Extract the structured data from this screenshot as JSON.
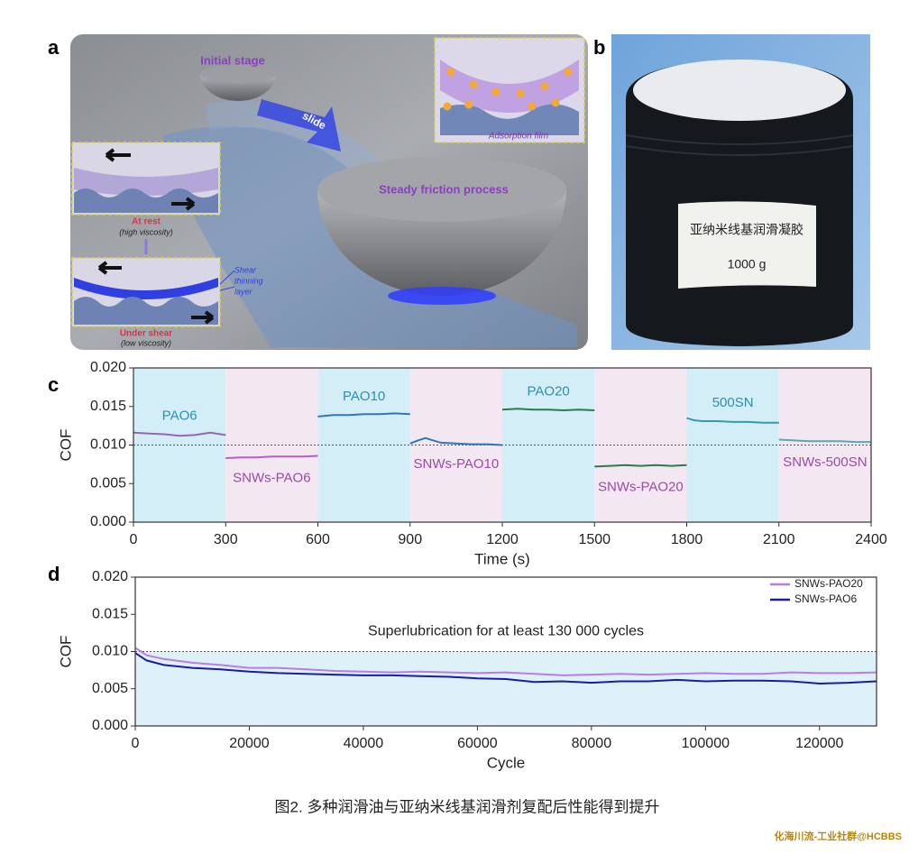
{
  "panel_a": {
    "label": "a",
    "initial": "Initial stage",
    "slide": "slide",
    "steady": "Steady friction process",
    "adsorption": "Adsorption film",
    "at_rest": "At rest",
    "high_visc": "(high viscosity)",
    "under_shear": "Under shear",
    "low_visc": "(low viscosity)",
    "shear_layer": [
      "Shear",
      "thinning",
      "layer"
    ]
  },
  "panel_b": {
    "label": "b",
    "jar_label": "亚纳米线基润滑凝胶",
    "jar_mass": "1000 g"
  },
  "chart_data": [
    {
      "type": "line",
      "panel": "c",
      "xlabel": "Time (s)",
      "ylabel": "COF",
      "xlim": [
        0,
        2400
      ],
      "xticks": [
        0,
        300,
        600,
        900,
        1200,
        1500,
        1800,
        2100,
        2400
      ],
      "ylim": [
        0,
        0.02
      ],
      "yticks": [
        {
          "value": 0,
          "label": "0.000"
        },
        {
          "value": 0.005,
          "label": "0.005"
        },
        {
          "value": 0.01,
          "label": "0.010"
        },
        {
          "value": 0.015,
          "label": "0.015"
        },
        {
          "value": 0.02,
          "label": "0.020"
        }
      ],
      "reference_line": 0.01,
      "series": [
        {
          "name": "PAO6",
          "color": "#9b62b8",
          "label_color": "#2b8fb0",
          "band_color": "#d4eef7",
          "x": [
            0,
            50,
            100,
            150,
            200,
            250,
            300
          ],
          "values": [
            0.0116,
            0.0115,
            0.0114,
            0.0112,
            0.0113,
            0.0116,
            0.0113
          ]
        },
        {
          "name": "SNWs-PAO6",
          "color": "#b45fc8",
          "label_color": "#9a4aa8",
          "band_color": "#f3e8f2",
          "x": [
            300,
            350,
            400,
            450,
            500,
            550,
            600
          ],
          "values": [
            0.0083,
            0.0084,
            0.0084,
            0.0085,
            0.0085,
            0.0085,
            0.0086
          ]
        },
        {
          "name": "PAO10",
          "color": "#2f78b8",
          "label_color": "#2b8fb0",
          "band_color": "#d4eef7",
          "x": [
            600,
            650,
            700,
            750,
            800,
            850,
            900
          ],
          "values": [
            0.0137,
            0.0139,
            0.0139,
            0.014,
            0.014,
            0.0141,
            0.014
          ]
        },
        {
          "name": "SNWs-PAO10",
          "color": "#2f78b8",
          "label_color": "#9a4aa8",
          "band_color": "#f3e8f2",
          "x": [
            900,
            925,
            950,
            1000,
            1050,
            1100,
            1150,
            1200
          ],
          "values": [
            0.0102,
            0.0106,
            0.0109,
            0.0103,
            0.0102,
            0.0101,
            0.0101,
            0.01
          ]
        },
        {
          "name": "PAO20",
          "color": "#2e7a4a",
          "label_color": "#2b8fb0",
          "band_color": "#d4eef7",
          "x": [
            1200,
            1250,
            1300,
            1350,
            1400,
            1450,
            1500
          ],
          "values": [
            0.0146,
            0.0147,
            0.0146,
            0.0146,
            0.0145,
            0.0146,
            0.0145
          ]
        },
        {
          "name": "SNWs-PAO20",
          "color": "#2e7a4a",
          "label_color": "#9a4aa8",
          "band_color": "#f3e8f2",
          "x": [
            1500,
            1550,
            1600,
            1650,
            1700,
            1750,
            1800
          ],
          "values": [
            0.0072,
            0.0073,
            0.0074,
            0.0073,
            0.0074,
            0.0073,
            0.0074
          ]
        },
        {
          "name": "500SN",
          "color": "#3a9aa8",
          "label_color": "#2b8fb0",
          "band_color": "#d4eef7",
          "x": [
            1800,
            1825,
            1850,
            1900,
            1950,
            2000,
            2050,
            2100
          ],
          "values": [
            0.0135,
            0.0132,
            0.0131,
            0.0131,
            0.013,
            0.013,
            0.0129,
            0.0129
          ]
        },
        {
          "name": "SNWs-500SN",
          "color": "#5aa8b0",
          "label_color": "#9a4aa8",
          "band_color": "#f3e8f2",
          "x": [
            2100,
            2150,
            2200,
            2250,
            2300,
            2350,
            2400
          ],
          "values": [
            0.0107,
            0.0106,
            0.0105,
            0.0105,
            0.0105,
            0.0104,
            0.0104
          ]
        }
      ]
    },
    {
      "type": "line",
      "panel": "d",
      "xlabel": "Cycle",
      "ylabel": "COF",
      "xlim": [
        0,
        130000
      ],
      "xticks": [
        0,
        20000,
        40000,
        60000,
        80000,
        100000,
        120000
      ],
      "ylim": [
        0,
        0.02
      ],
      "yticks": [
        {
          "value": 0,
          "label": "0.000"
        },
        {
          "value": 0.005,
          "label": "0.005"
        },
        {
          "value": 0.01,
          "label": "0.010"
        },
        {
          "value": 0.015,
          "label": "0.015"
        },
        {
          "value": 0.02,
          "label": "0.020"
        }
      ],
      "reference_line": 0.01,
      "reference_fill": "#dff1f8",
      "annotation": "Superlubrication for at least 130 000 cycles",
      "legend": "upper right",
      "x": [
        0,
        2000,
        5000,
        10000,
        15000,
        20000,
        25000,
        30000,
        35000,
        40000,
        45000,
        50000,
        55000,
        60000,
        65000,
        70000,
        75000,
        80000,
        85000,
        90000,
        95000,
        100000,
        105000,
        110000,
        115000,
        120000,
        125000,
        130000
      ],
      "series": [
        {
          "name": "SNWs-PAO20",
          "color": "#b77ee6",
          "values": [
            0.0105,
            0.0095,
            0.009,
            0.0085,
            0.0082,
            0.0078,
            0.0078,
            0.0076,
            0.0074,
            0.0073,
            0.0072,
            0.0073,
            0.0072,
            0.0071,
            0.0072,
            0.007,
            0.0068,
            0.0069,
            0.007,
            0.0069,
            0.007,
            0.0071,
            0.007,
            0.007,
            0.0072,
            0.0071,
            0.0071,
            0.0072
          ]
        },
        {
          "name": "SNWs-PAO6",
          "color": "#1c1ca0",
          "values": [
            0.0098,
            0.0088,
            0.0082,
            0.0078,
            0.0076,
            0.0073,
            0.0071,
            0.007,
            0.0069,
            0.0068,
            0.0068,
            0.0067,
            0.0066,
            0.0064,
            0.0063,
            0.0059,
            0.006,
            0.0058,
            0.006,
            0.006,
            0.0062,
            0.006,
            0.0061,
            0.0061,
            0.006,
            0.0057,
            0.0058,
            0.006
          ]
        }
      ]
    }
  ],
  "caption": "图2. 多种润滑油与亚纳米线基润滑剂复配后性能得到提升",
  "watermark": "化海川流-工业社群@HCBBS"
}
